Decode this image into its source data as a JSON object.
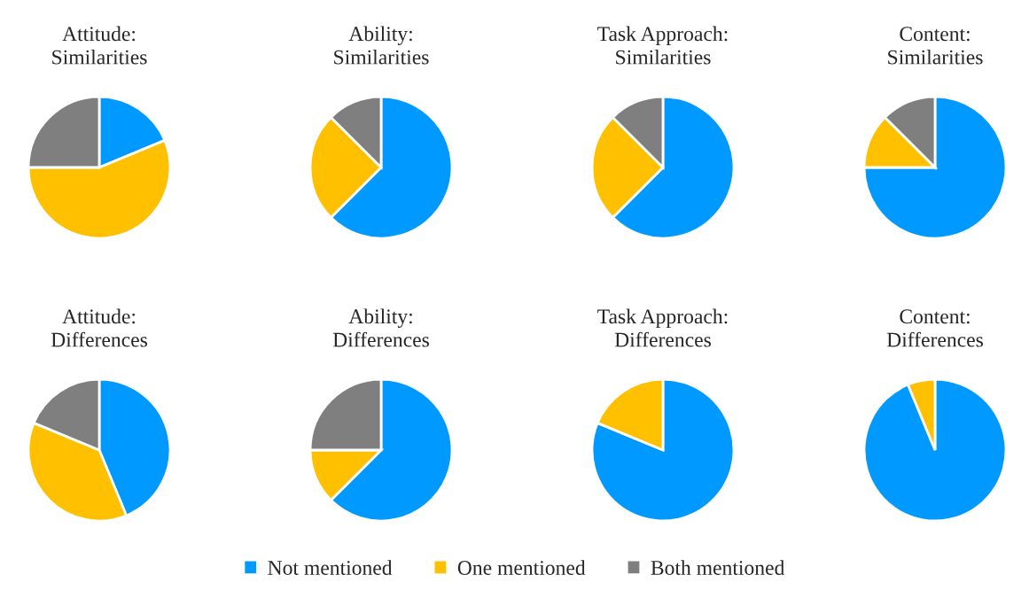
{
  "chart_data": [
    {
      "type": "pie",
      "title": "Attitude:\nSimilarities",
      "categories": [
        "Not mentioned",
        "One mentioned",
        "Both mentioned"
      ],
      "values": [
        18.75,
        56.25,
        25
      ],
      "colors": [
        "#0099ff",
        "#ffc000",
        "#7f7f7f"
      ],
      "legend": "bottom"
    },
    {
      "type": "pie",
      "title": "Ability:\nSimilarities",
      "categories": [
        null,
        null,
        null
      ],
      "values": [
        62.5,
        25,
        12.5
      ],
      "colors": [
        "#0099ff",
        "#ffc000",
        "#7f7f7f"
      ]
    },
    {
      "type": "pie",
      "title": "Task Approach:\nSimilarities",
      "categories": [
        null,
        null,
        null
      ],
      "values": [
        62.5,
        25,
        12.5
      ],
      "colors": [
        "#0099ff",
        "#ffc000",
        "#7f7f7f"
      ]
    },
    {
      "type": "pie",
      "title": "Content:\nSimilarities",
      "categories": [
        null,
        null,
        null
      ],
      "values": [
        75,
        12.5,
        12.5
      ],
      "colors": [
        "#0099ff",
        "#ffc000",
        "#7f7f7f"
      ]
    },
    {
      "type": "pie",
      "title": "Attitude:\nDifferences",
      "categories": [
        null,
        null,
        null
      ],
      "values": [
        43.75,
        37.5,
        18.75
      ],
      "colors": [
        "#0099ff",
        "#ffc000",
        "#7f7f7f"
      ]
    },
    {
      "type": "pie",
      "title": "Ability:\nDifferences",
      "categories": [
        null,
        null,
        null
      ],
      "values": [
        62.5,
        12.5,
        25
      ],
      "colors": [
        "#0099ff",
        "#ffc000",
        "#7f7f7f"
      ]
    },
    {
      "type": "pie",
      "title": "Task Approach:\nDifferences",
      "categories": [
        null,
        null
      ],
      "values": [
        81.25,
        18.75
      ],
      "colors": [
        "#0099ff",
        "#ffc000"
      ]
    },
    {
      "type": "pie",
      "title": "Content:\nDifferences",
      "categories": [
        null,
        null
      ],
      "values": [
        93.75,
        6.25
      ],
      "colors": [
        "#0099ff",
        "#ffc000"
      ]
    }
  ]
}
